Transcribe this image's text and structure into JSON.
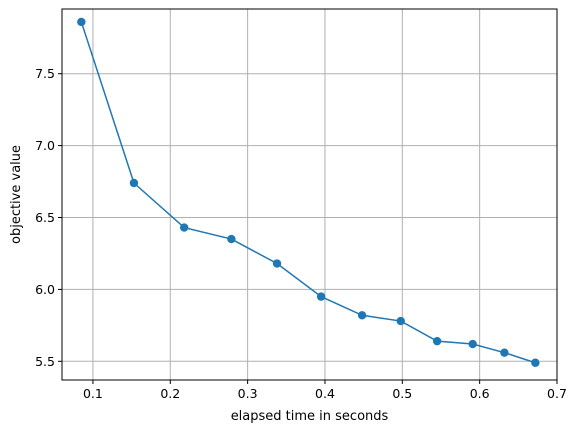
{
  "chart_data": {
    "type": "line",
    "title": "",
    "xlabel": "elapsed time in seconds",
    "ylabel": "objective value",
    "xlim": [
      0.06,
      0.7
    ],
    "ylim": [
      5.37,
      7.95
    ],
    "xticks": [
      0.1,
      0.2,
      0.3,
      0.4,
      0.5,
      0.6,
      0.7
    ],
    "xtick_labels": [
      "0.1",
      "0.2",
      "0.3",
      "0.4",
      "0.5",
      "0.6",
      "0.7"
    ],
    "yticks": [
      5.5,
      6.0,
      6.5,
      7.0,
      7.5
    ],
    "ytick_labels": [
      "5.5",
      "6.0",
      "6.5",
      "7.0",
      "7.5"
    ],
    "grid": true,
    "colors": {
      "series": "#1f77b4",
      "grid": "#b0b0b0",
      "axis": "#000000"
    },
    "series": [
      {
        "x": [
          0.085,
          0.153,
          0.218,
          0.279,
          0.338,
          0.395,
          0.448,
          0.498,
          0.545,
          0.591,
          0.632,
          0.672
        ],
        "y": [
          7.86,
          6.74,
          6.43,
          6.35,
          6.18,
          5.95,
          5.82,
          5.78,
          5.64,
          5.62,
          5.56,
          5.49
        ]
      }
    ]
  }
}
